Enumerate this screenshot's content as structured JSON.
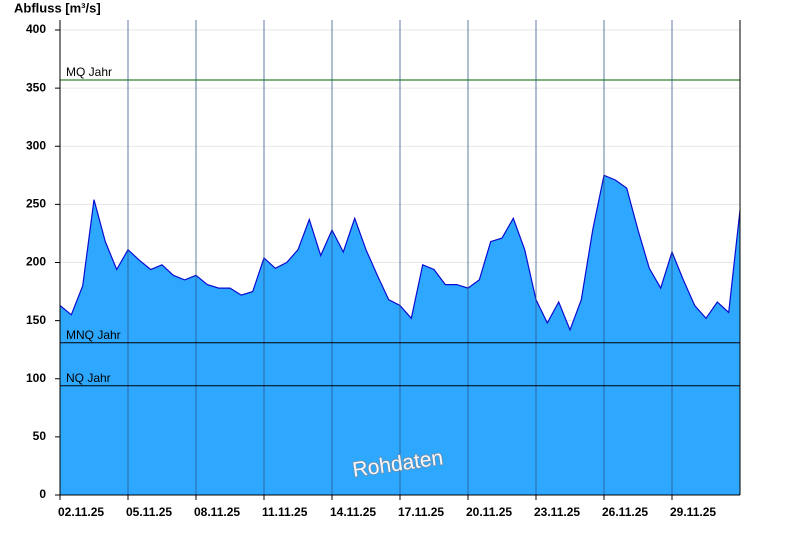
{
  "chart_data": {
    "type": "area",
    "y_label": "Abfluss [m³/s]",
    "watermark": "Rohdaten",
    "x": [
      0,
      0.5,
      1,
      1.5,
      2,
      2.5,
      3,
      3.5,
      4,
      4.5,
      5,
      5.5,
      6,
      6.5,
      7,
      7.5,
      8,
      8.5,
      9,
      9.5,
      10,
      10.5,
      11,
      11.5,
      12,
      12.5,
      13,
      13.5,
      14,
      14.5,
      15,
      15.5,
      16,
      16.5,
      17,
      17.5,
      18,
      18.5,
      19,
      19.5,
      20,
      20.5,
      21,
      21.5,
      22,
      22.5,
      23,
      23.5,
      24,
      24.5,
      25,
      25.5,
      26,
      26.5,
      27,
      27.5,
      28,
      28.5,
      29,
      29.5,
      30
    ],
    "values": [
      163,
      155,
      180,
      254,
      218,
      194,
      211,
      202,
      194,
      198,
      189,
      185,
      189,
      181,
      178,
      178,
      172,
      175,
      204,
      195,
      200,
      211,
      237,
      206,
      228,
      209,
      238,
      211,
      189,
      168,
      163,
      152,
      198,
      194,
      181,
      181,
      178,
      185,
      218,
      221,
      238,
      211,
      168,
      148,
      166,
      142,
      168,
      228,
      275,
      271,
      264,
      228,
      195,
      178,
      209,
      185,
      163,
      152,
      166,
      157,
      245
    ],
    "color": "#2ea8ff",
    "line_color": "#0a0ad0",
    "xlim": [
      0,
      30
    ],
    "xticks": [
      {
        "value": 0,
        "label": "02.11.25"
      },
      {
        "value": 3,
        "label": "05.11.25"
      },
      {
        "value": 6,
        "label": "08.11.25"
      },
      {
        "value": 9,
        "label": "11.11.25"
      },
      {
        "value": 12,
        "label": "14.11.25"
      },
      {
        "value": 15,
        "label": "17.11.25"
      },
      {
        "value": 18,
        "label": "20.11.25"
      },
      {
        "value": 21,
        "label": "23.11.25"
      },
      {
        "value": 24,
        "label": "26.11.25"
      },
      {
        "value": 27,
        "label": "29.11.25"
      }
    ],
    "ylim": [
      0,
      400
    ],
    "yticks": [
      0,
      50,
      100,
      150,
      200,
      250,
      300,
      350,
      400
    ],
    "grid": true,
    "reference_lines": [
      {
        "label": "MQ Jahr",
        "value": 357,
        "color": "#006400"
      },
      {
        "label": "MNQ Jahr",
        "value": 131,
        "color": "#000000"
      },
      {
        "label": "NQ Jahr",
        "value": 94,
        "color": "#000000"
      }
    ]
  }
}
